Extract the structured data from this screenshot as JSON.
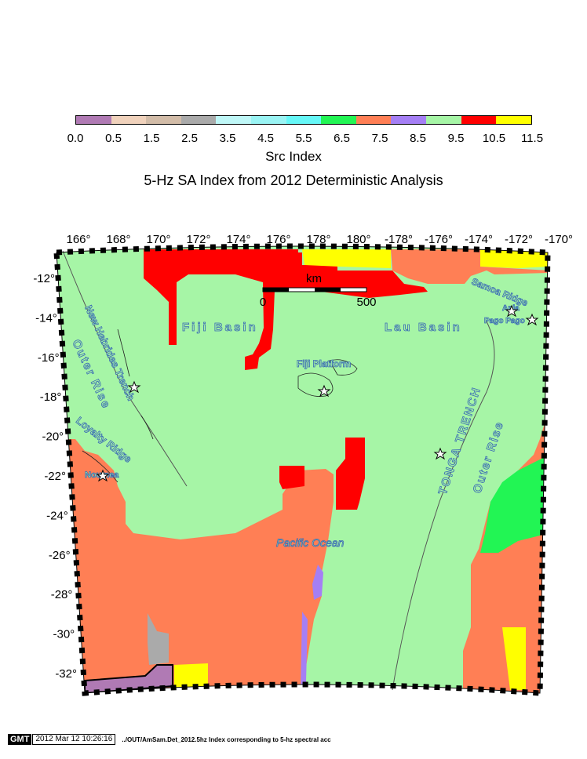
{
  "colorbar": {
    "title": "Src Index",
    "ticks": [
      "0.0",
      "0.5",
      "1.5",
      "2.5",
      "3.5",
      "4.5",
      "5.5",
      "6.5",
      "7.5",
      "8.5",
      "9.5",
      "10.5",
      "11.5"
    ],
    "colors": [
      "#b07ab4",
      "#f0d2bc",
      "#d2bca8",
      "#aaaaaa",
      "#bff7f7",
      "#9af4f4",
      "#66f7f7",
      "#22f554",
      "#ff7f55",
      "#a57ff5",
      "#a6f5a6",
      "#ff0000",
      "#ffff00"
    ]
  },
  "map": {
    "title": "5-Hz SA Index from 2012 Deterministic Analysis",
    "lon_labels": [
      "166°",
      "168°",
      "170°",
      "172°",
      "174°",
      "176°",
      "178°",
      "180°",
      "-178°",
      "-176°",
      "-174°",
      "-172°",
      "-170°"
    ],
    "lat_labels": [
      "-12°",
      "-14°",
      "-16°",
      "-18°",
      "-20°",
      "-22°",
      "-24°",
      "-26°",
      "-28°",
      "-30°",
      "-32°"
    ],
    "features": {
      "fiji_basin": "Fiji Basin",
      "lau_basin": "Lau Basin",
      "fiji_platform": "Fiji Platform",
      "new_hebrides_trench": "New Hebrides Trench",
      "outer_rise_west": "Outer Rise",
      "loyalty_ridge": "Loyalty Ridge",
      "noumea": "Noumea",
      "pacific_ocean": "Pacific Ocean",
      "tonga_trench": "TONGA TRENCH",
      "outer_rise_east": "Outer Rise",
      "samoa_ridge": "Samoa Ridge",
      "apia": "Apia",
      "pago_pago": "Pago Pago"
    },
    "scale": {
      "unit": "km",
      "start": "0",
      "end": "500"
    }
  },
  "footer": {
    "logo": "GMT",
    "date": "2012 Mar 12 10:26:16",
    "command": "../OUT/AmSam.Det_2012.5hz Index corresponding to 5-hz spectral acc"
  }
}
